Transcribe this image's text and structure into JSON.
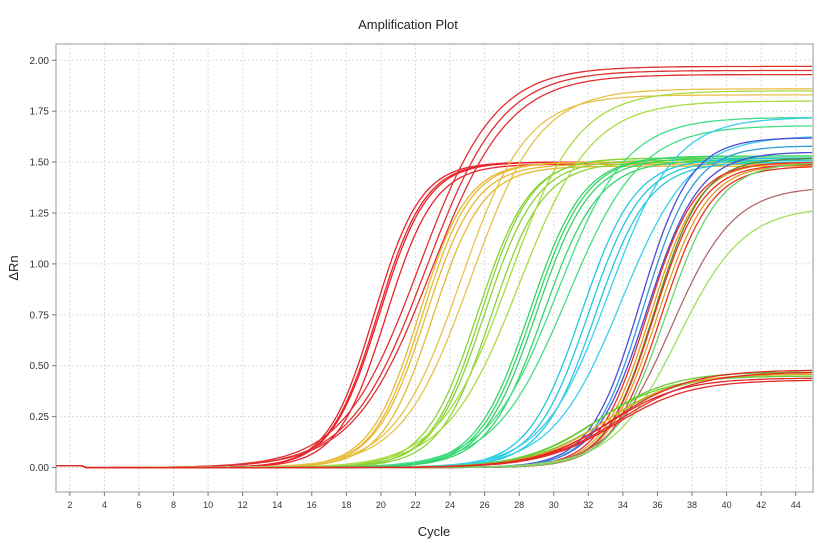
{
  "chart_data": {
    "type": "line",
    "title": "Amplification Plot",
    "xlabel": "Cycle",
    "ylabel": "ΔRn",
    "xlim": [
      1.2,
      45
    ],
    "ylim": [
      -0.12,
      2.08
    ],
    "x_ticks": [
      2,
      4,
      6,
      8,
      10,
      12,
      14,
      16,
      18,
      20,
      22,
      24,
      26,
      28,
      30,
      32,
      34,
      36,
      38,
      40,
      42,
      44
    ],
    "y_ticks": [
      0.0,
      0.25,
      0.5,
      0.75,
      1.0,
      1.25,
      1.5,
      1.75,
      2.0
    ],
    "y_tick_labels": [
      "0.00",
      "0.25",
      "0.50",
      "0.75",
      "1.00",
      "1.25",
      "1.50",
      "1.75",
      "2.00"
    ],
    "grid": true,
    "legend": "none",
    "curve_model": "sigmoid: y = plateau / (1 + exp(-(cycle - midpoint) / slope))",
    "series": [
      {
        "color": "#e8222a",
        "params": [
          [
            1.5,
            19.6,
            1.35
          ],
          [
            1.5,
            19.9,
            1.4
          ],
          [
            1.49,
            20.3,
            1.4
          ],
          [
            1.5,
            19.8,
            1.38
          ]
        ]
      },
      {
        "color": "#e03030",
        "params": [
          [
            1.97,
            22.2,
            2.2
          ],
          [
            1.95,
            22.6,
            2.2
          ],
          [
            1.93,
            22.9,
            2.25
          ]
        ]
      },
      {
        "color": "#e6b832",
        "params": [
          [
            1.5,
            22.2,
            1.4
          ],
          [
            1.49,
            22.6,
            1.45
          ],
          [
            1.48,
            23.0,
            1.45
          ],
          [
            1.5,
            22.4,
            1.4
          ]
        ]
      },
      {
        "color": "#e7c24a",
        "params": [
          [
            1.83,
            24.6,
            1.9
          ],
          [
            1.86,
            25.2,
            2.0
          ]
        ]
      },
      {
        "color": "#88d438",
        "params": [
          [
            1.52,
            25.6,
            1.5
          ],
          [
            1.51,
            26.0,
            1.5
          ],
          [
            1.5,
            26.4,
            1.5
          ],
          [
            1.52,
            25.8,
            1.45
          ]
        ]
      },
      {
        "color": "#a8dc40",
        "params": [
          [
            1.85,
            27.4,
            2.0
          ],
          [
            1.8,
            28.0,
            2.1
          ]
        ]
      },
      {
        "color": "#34d46a",
        "params": [
          [
            1.53,
            28.6,
            1.55
          ],
          [
            1.52,
            29.0,
            1.55
          ],
          [
            1.51,
            29.4,
            1.6
          ],
          [
            1.53,
            28.8,
            1.55
          ]
        ]
      },
      {
        "color": "#44dd88",
        "params": [
          [
            1.72,
            30.2,
            2.0
          ],
          [
            1.68,
            30.8,
            2.1
          ]
        ]
      },
      {
        "color": "#22c8e0",
        "params": [
          [
            1.52,
            31.6,
            1.55
          ],
          [
            1.51,
            32.0,
            1.55
          ],
          [
            1.5,
            32.4,
            1.55
          ]
        ]
      },
      {
        "color": "#3ad0ec",
        "params": [
          [
            1.72,
            33.2,
            1.9
          ],
          [
            1.63,
            33.9,
            2.0
          ]
        ]
      },
      {
        "color": "#4a4cdc",
        "params": [
          [
            1.62,
            35.0,
            1.45
          ],
          [
            1.55,
            35.4,
            1.5
          ]
        ]
      },
      {
        "color": "#2f9bd8",
        "params": [
          [
            1.58,
            35.2,
            1.45
          ]
        ]
      },
      {
        "color": "#e0a020",
        "params": [
          [
            1.5,
            35.6,
            1.4
          ],
          [
            1.49,
            36.0,
            1.45
          ]
        ]
      },
      {
        "color": "#5a8a2a",
        "params": [
          [
            1.52,
            35.8,
            1.4
          ]
        ]
      },
      {
        "color": "#e8302a",
        "params": [
          [
            1.5,
            35.4,
            1.4
          ],
          [
            1.49,
            35.8,
            1.4
          ],
          [
            1.48,
            36.2,
            1.45
          ]
        ]
      },
      {
        "color": "#b06a6a",
        "params": [
          [
            1.38,
            36.8,
            1.8
          ]
        ]
      },
      {
        "color": "#9ee060",
        "params": [
          [
            1.28,
            37.2,
            1.9
          ]
        ]
      },
      {
        "color": "#6ad46a",
        "params": [
          [
            1.5,
            36.5,
            1.55
          ]
        ]
      },
      {
        "color": "#66cc33",
        "params": [
          [
            0.47,
            32.6,
            2.1
          ],
          [
            0.46,
            33.0,
            2.2
          ],
          [
            0.45,
            32.4,
            2.1
          ]
        ]
      },
      {
        "color": "#e8a820",
        "params": [
          [
            0.46,
            33.0,
            2.1
          ]
        ]
      },
      {
        "color": "#e22a2a",
        "params": [
          [
            0.48,
            33.5,
            2.2
          ],
          [
            0.47,
            33.8,
            2.25
          ],
          [
            0.44,
            33.2,
            2.1
          ],
          [
            0.43,
            33.6,
            2.15
          ]
        ]
      }
    ]
  }
}
